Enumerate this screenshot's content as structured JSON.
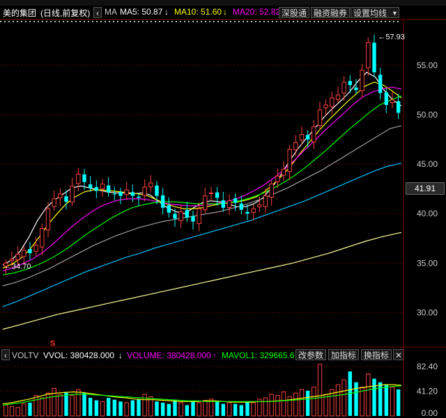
{
  "header": {
    "stock_name": "美的集团",
    "mode": "(日线,前复权)",
    "indicator": "MA",
    "ma5_label": "MA5: 50.87",
    "ma5_arrow": "↓",
    "ma10_label": "MA10: 51.60",
    "ma10_arrow": "↓",
    "ma20_label": "MA20: 52.82",
    "buttons": [
      "深股通",
      "融资融券",
      "设置均线"
    ],
    "dropdown_icon": "triangle-down-icon"
  },
  "volume_header": {
    "indicator": "VOLTV",
    "vvol_label": "VVOL: 380428.000",
    "vvol_arrow": "↓",
    "volume_label": "VOLUME: 380428.000",
    "volume_arrow": "↑",
    "mavol_label": "MAVOL1: 329665.6",
    "buttons": [
      "改参数",
      "加指标",
      "换指标"
    ],
    "close_icon": "close-icon"
  },
  "annotations": {
    "high_label": "57.93",
    "low_label": "34.70",
    "current_price": "41.91",
    "event_marker": "S"
  },
  "colors": {
    "up": "#ff4040",
    "down": "#00ffff",
    "ma5": "#ffffff",
    "ma10": "#ffff00",
    "ma20": "#ff00ff",
    "ma30": "#00ff00",
    "ma60": "#a0a0a0",
    "ma120": "#00bfff",
    "ma250": "#ffff99"
  },
  "chart_data": [
    {
      "type": "candlestick",
      "y_ticks": [
        55.0,
        50.0,
        45.0,
        40.0,
        35.0,
        30.0
      ],
      "ylim": [
        27.0,
        59.5
      ],
      "grid": true,
      "approx_close": [
        35.0,
        35.4,
        35.9,
        36.3,
        36.0,
        36.8,
        38.5,
        40.5,
        41.5,
        42.0,
        41.2,
        42.8,
        44.0,
        43.2,
        42.6,
        42.3,
        43.0,
        42.2,
        42.0,
        41.8,
        42.4,
        41.8,
        41.6,
        42.7,
        43.1,
        41.8,
        40.6,
        40.1,
        39.5,
        40.2,
        39.6,
        39.2,
        40.5,
        41.8,
        42.1,
        41.6,
        40.6,
        41.3,
        41.1,
        40.4,
        40.0,
        40.5,
        40.9,
        41.8,
        43.0,
        43.8,
        44.5,
        46.5,
        47.2,
        48.0,
        47.5,
        48.8,
        50.5,
        51.0,
        51.7,
        52.0,
        53.3,
        53.0,
        52.5,
        54.5,
        57.3,
        54.3,
        52.2,
        51.0,
        51.5,
        50.2
      ],
      "ma_series": [
        {
          "name": "MA5",
          "values": [
            34.8,
            35.3,
            36.2,
            37.6,
            39.3,
            40.6,
            41.4,
            42.0,
            42.6,
            42.8,
            42.6,
            42.4,
            42.2,
            42.1,
            42.1,
            42.0,
            42.1,
            41.9,
            41.2,
            40.6,
            40.2,
            40.0,
            40.6,
            41.1,
            41.3,
            41.2,
            41.0,
            40.7,
            40.7,
            41.0,
            41.6,
            42.6,
            43.8,
            45.2,
            46.5,
            47.6,
            48.6,
            49.7,
            50.6,
            51.4,
            52.3,
            53.4,
            54.3,
            53.8,
            52.5,
            51.5,
            50.9
          ]
        },
        {
          "name": "MA10",
          "values": [
            34.5,
            34.9,
            35.5,
            36.4,
            37.6,
            38.9,
            40.0,
            41.0,
            41.7,
            42.2,
            42.4,
            42.4,
            42.3,
            42.2,
            42.1,
            42.0,
            41.8,
            41.4,
            41.0,
            40.7,
            40.5,
            40.5,
            40.6,
            40.8,
            41.0,
            41.1,
            41.2,
            41.4,
            41.7,
            42.3,
            43.1,
            44.0,
            45.1,
            46.3,
            47.4,
            48.5,
            49.5,
            50.4,
            51.3,
            52.1,
            52.9,
            53.3,
            53.0,
            52.4,
            51.7
          ]
        },
        {
          "name": "MA20",
          "values": [
            34.2,
            34.5,
            34.9,
            35.4,
            36.0,
            36.8,
            37.7,
            38.6,
            39.4,
            40.1,
            40.7,
            41.1,
            41.4,
            41.5,
            41.5,
            41.4,
            41.2,
            41.0,
            40.9,
            40.8,
            40.8,
            40.9,
            41.0,
            41.2,
            41.5,
            41.9,
            42.4,
            43.0,
            43.7,
            44.5,
            45.4,
            46.4,
            47.3,
            48.3,
            49.2,
            50.1,
            51.0,
            51.8,
            52.3,
            52.6,
            52.8,
            52.6
          ]
        },
        {
          "name": "MA30",
          "values": [
            33.8,
            34.0,
            34.3,
            34.7,
            35.2,
            35.8,
            36.5,
            37.3,
            38.1,
            38.8,
            39.5,
            40.1,
            40.6,
            40.9,
            41.1,
            41.2,
            41.2,
            41.1,
            41.0,
            41.0,
            41.0,
            41.1,
            41.3,
            41.6,
            42.0,
            42.5,
            43.1,
            43.8,
            44.6,
            45.5,
            46.4,
            47.4,
            48.4,
            49.3,
            50.2,
            51.0,
            51.5,
            51.9
          ]
        },
        {
          "name": "MA60",
          "values": [
            32.7,
            33.0,
            33.4,
            33.9,
            34.4,
            35.0,
            35.6,
            36.2,
            36.8,
            37.3,
            37.8,
            38.2,
            38.6,
            38.9,
            39.2,
            39.4,
            39.6,
            39.8,
            40.0,
            40.2,
            40.5,
            40.8,
            41.2,
            41.6,
            42.1,
            42.6,
            43.2,
            43.8,
            44.4,
            45.1,
            45.8,
            46.5,
            47.2,
            47.9,
            48.6,
            48.9
          ]
        },
        {
          "name": "MA120",
          "values": [
            30.6,
            31.1,
            31.7,
            32.3,
            32.9,
            33.5,
            34.1,
            34.6,
            35.1,
            35.6,
            36.0,
            36.5,
            36.9,
            37.3,
            37.7,
            38.1,
            38.5,
            38.9,
            39.3,
            39.8,
            40.3,
            40.8,
            41.3,
            41.9,
            42.5,
            43.1,
            43.7,
            44.3,
            44.8,
            45.1
          ]
        },
        {
          "name": "MA250",
          "values": [
            28.3,
            28.8,
            29.3,
            29.8,
            30.2,
            30.6,
            31.0,
            31.4,
            31.8,
            32.2,
            32.6,
            33.0,
            33.4,
            33.8,
            34.2,
            34.6,
            35.0,
            35.5,
            36.0,
            36.6,
            37.2,
            37.7,
            38.1
          ]
        }
      ]
    },
    {
      "type": "bar",
      "y_ticks": [
        82.4,
        41.2,
        0.0
      ],
      "ylim": [
        0,
        88
      ],
      "approx_volume": [
        18,
        16,
        14,
        20,
        22,
        34,
        30,
        38,
        46,
        36,
        40,
        34,
        44,
        39,
        30,
        26,
        24,
        30,
        27,
        24,
        22,
        26,
        28,
        36,
        32,
        24,
        22,
        20,
        26,
        22,
        18,
        24,
        22,
        26,
        28,
        24,
        20,
        22,
        20,
        18,
        24,
        22,
        28,
        30,
        36,
        34,
        40,
        32,
        38,
        44,
        42,
        48,
        86,
        36,
        44,
        52,
        60,
        74,
        56,
        48,
        70,
        62,
        56,
        52,
        48,
        44
      ],
      "mavol_series": [
        {
          "name": "MAVOL1",
          "values": [
            20,
            22,
            25,
            28,
            32,
            36,
            38,
            39,
            40,
            39,
            37,
            35,
            33,
            31,
            30,
            28,
            27,
            27,
            26,
            25,
            24,
            24,
            24,
            25,
            25,
            24,
            23,
            23,
            23,
            24,
            24,
            25,
            26,
            28,
            30,
            32,
            34,
            37,
            40,
            43,
            46,
            48,
            50,
            52,
            52,
            51
          ]
        },
        {
          "name": "MAVOL2",
          "values": [
            18,
            20,
            22,
            25,
            28,
            31,
            33,
            35,
            36,
            36,
            35,
            34,
            33,
            32,
            31,
            30,
            29,
            28,
            27,
            26,
            25,
            25,
            24,
            24,
            24,
            24,
            24,
            24,
            24,
            24,
            25,
            26,
            27,
            28,
            30,
            32,
            34,
            36,
            39,
            42,
            45,
            47,
            49,
            50
          ]
        }
      ]
    }
  ]
}
